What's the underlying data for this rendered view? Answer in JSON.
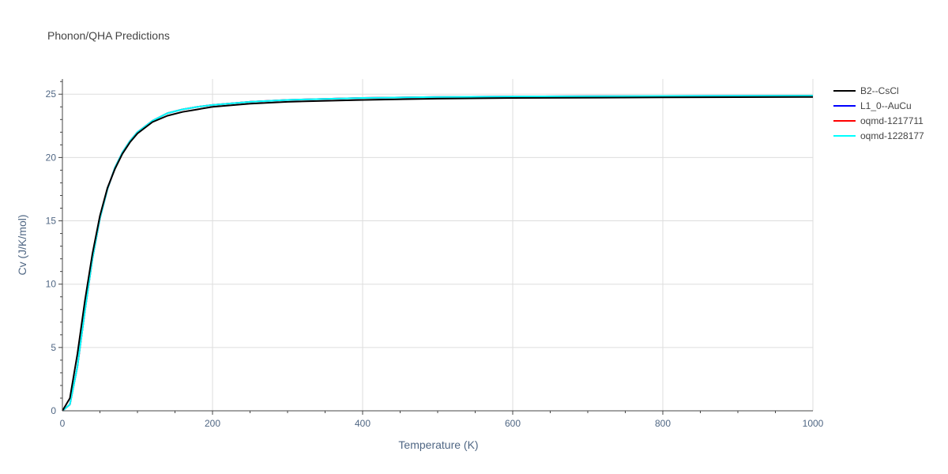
{
  "chart_data": {
    "type": "line",
    "title": "Phonon/QHA Predictions",
    "xlabel": "Temperature (K)",
    "ylabel": "Cv (J/K/mol)",
    "xlim": [
      0,
      1000
    ],
    "ylim": [
      0,
      26.2
    ],
    "x_ticks": [
      0,
      200,
      400,
      600,
      800,
      1000
    ],
    "y_ticks": [
      0,
      5,
      10,
      15,
      20,
      25
    ],
    "grid": true,
    "legend_position": "top-right",
    "series": [
      {
        "name": "B2--CsCl",
        "color": "#000000",
        "x": [
          0,
          10,
          20,
          30,
          40,
          50,
          60,
          70,
          80,
          90,
          100,
          120,
          140,
          160,
          180,
          200,
          250,
          300,
          400,
          500,
          600,
          800,
          1000
        ],
        "y": [
          0,
          1.0,
          4.5,
          8.7,
          12.4,
          15.4,
          17.6,
          19.1,
          20.3,
          21.2,
          21.9,
          22.8,
          23.3,
          23.6,
          23.8,
          24.0,
          24.25,
          24.4,
          24.55,
          24.65,
          24.7,
          24.75,
          24.78
        ]
      },
      {
        "name": "L1_0--AuCu",
        "color": "#0000ff",
        "x": [
          0,
          10,
          20,
          30,
          40,
          50,
          60,
          70,
          80,
          90,
          100,
          120,
          140,
          160,
          180,
          200,
          250,
          300,
          400,
          500,
          600,
          800,
          1000
        ],
        "y": [
          0,
          0.5,
          3.5,
          7.9,
          12.0,
          15.2,
          17.5,
          19.2,
          20.4,
          21.3,
          22.0,
          22.9,
          23.5,
          23.8,
          24.0,
          24.15,
          24.4,
          24.55,
          24.7,
          24.78,
          24.82,
          24.86,
          24.88
        ]
      },
      {
        "name": "oqmd-1217711",
        "color": "#ff0000",
        "x": [
          0,
          10,
          20,
          30,
          40,
          50,
          60,
          70,
          80,
          90,
          100,
          120,
          140,
          160,
          180,
          200,
          250,
          300,
          400,
          500,
          600,
          800,
          1000
        ],
        "y": [
          0,
          0.5,
          3.5,
          7.9,
          12.0,
          15.2,
          17.5,
          19.2,
          20.4,
          21.3,
          22.0,
          22.9,
          23.5,
          23.8,
          24.0,
          24.15,
          24.4,
          24.55,
          24.7,
          24.78,
          24.82,
          24.86,
          24.88
        ]
      },
      {
        "name": "oqmd-1228177",
        "color": "#00ffff",
        "x": [
          0,
          10,
          20,
          30,
          40,
          50,
          60,
          70,
          80,
          90,
          100,
          120,
          140,
          160,
          180,
          200,
          250,
          300,
          400,
          500,
          600,
          800,
          1000
        ],
        "y": [
          0,
          0.5,
          3.5,
          7.9,
          12.0,
          15.2,
          17.5,
          19.2,
          20.4,
          21.3,
          22.0,
          22.9,
          23.5,
          23.8,
          24.0,
          24.15,
          24.4,
          24.55,
          24.7,
          24.78,
          24.82,
          24.86,
          24.88
        ]
      }
    ]
  }
}
